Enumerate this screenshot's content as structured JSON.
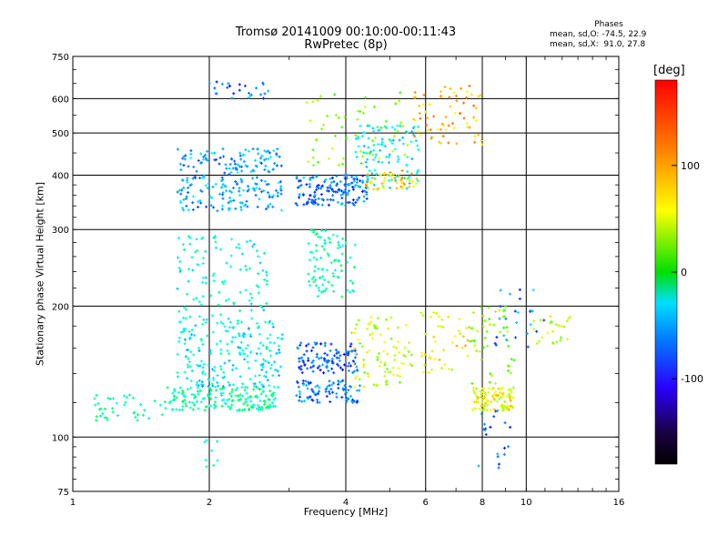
{
  "chart_data": {
    "type": "scatter",
    "title": "Tromsø 20141009 00:10:00-00:11:43",
    "subtitle": "RwPretec (8p)",
    "xlabel": "Frequency [MHz]",
    "ylabel": "Stationary phase Virtual Height [km]",
    "xscale": "log",
    "yscale": "log",
    "xlim": [
      1,
      16
    ],
    "ylim": [
      75,
      750
    ],
    "xticks": [
      1,
      2,
      4,
      6,
      8,
      10,
      16
    ],
    "xtick_labels": [
      "1",
      "2",
      "4",
      "6",
      "8",
      "10",
      "16"
    ],
    "yticks": [
      75,
      100,
      200,
      300,
      400,
      500,
      600,
      750
    ],
    "ytick_labels": [
      "75",
      "100",
      "200",
      "300",
      "400",
      "500",
      "600",
      "750"
    ],
    "grid": true,
    "colorbar": {
      "label": "[deg]",
      "range": [
        -180,
        180
      ],
      "ticks": [
        100,
        0,
        -100
      ],
      "tick_labels": [
        "100",
        "0",
        "-100"
      ]
    },
    "stats": {
      "heading": "Phases",
      "line_o": "mean, sd,O: -74.5, 22.9",
      "line_x": "mean, sd,X:  91.0, 27.8"
    },
    "clusters": [
      {
        "f": [
          1.1,
          1.6
        ],
        "h": [
          108,
          125
        ],
        "phase": -40,
        "n": 40
      },
      {
        "f": [
          1.6,
          2.8
        ],
        "h": [
          115,
          130
        ],
        "phase": -30,
        "n": 180
      },
      {
        "f": [
          1.7,
          2.9
        ],
        "h": [
          130,
          185
        ],
        "phase": -60,
        "n": 220
      },
      {
        "f": [
          1.7,
          2.7
        ],
        "h": [
          185,
          290
        ],
        "phase": -50,
        "n": 110
      },
      {
        "f": [
          1.7,
          2.9
        ],
        "h": [
          330,
          460
        ],
        "phase": -90,
        "n": 240
      },
      {
        "f": [
          2.0,
          2.7
        ],
        "h": [
          600,
          660
        ],
        "phase": -110,
        "n": 25
      },
      {
        "f": [
          1.95,
          2.1
        ],
        "h": [
          85,
          100
        ],
        "phase": -50,
        "n": 8
      },
      {
        "f": [
          3.1,
          4.3
        ],
        "h": [
          120,
          135
        ],
        "phase": -100,
        "n": 90
      },
      {
        "f": [
          3.1,
          4.3
        ],
        "h": [
          140,
          165
        ],
        "phase": -115,
        "n": 110
      },
      {
        "f": [
          3.3,
          4.2
        ],
        "h": [
          210,
          300
        ],
        "phase": -40,
        "n": 90
      },
      {
        "f": [
          3.1,
          4.5
        ],
        "h": [
          340,
          400
        ],
        "phase": -105,
        "n": 150
      },
      {
        "f": [
          3.2,
          5.5
        ],
        "h": [
          420,
          620
        ],
        "phase": 60,
        "n": 60
      },
      {
        "f": [
          4.1,
          5.6
        ],
        "h": [
          130,
          190
        ],
        "phase": 80,
        "n": 90
      },
      {
        "f": [
          4.2,
          5.8
        ],
        "h": [
          370,
          520
        ],
        "phase": -60,
        "n": 110
      },
      {
        "f": [
          4.4,
          5.8
        ],
        "h": [
          370,
          410
        ],
        "phase": 110,
        "n": 50
      },
      {
        "f": [
          5.6,
          8.0
        ],
        "h": [
          470,
          650
        ],
        "phase": 120,
        "n": 70
      },
      {
        "f": [
          5.8,
          7.5
        ],
        "h": [
          140,
          195
        ],
        "phase": 100,
        "n": 45
      },
      {
        "f": [
          7.6,
          9.4
        ],
        "h": [
          115,
          130
        ],
        "phase": 95,
        "n": 110
      },
      {
        "f": [
          7.5,
          9.5
        ],
        "h": [
          130,
          200
        ],
        "phase": 60,
        "n": 50
      },
      {
        "f": [
          7.8,
          9.3
        ],
        "h": [
          85,
          115
        ],
        "phase": -110,
        "n": 20
      },
      {
        "f": [
          8.5,
          11.0
        ],
        "h": [
          160,
          220
        ],
        "phase": -100,
        "n": 25
      },
      {
        "f": [
          10.2,
          12.5
        ],
        "h": [
          160,
          190
        ],
        "phase": 80,
        "n": 25
      }
    ]
  }
}
